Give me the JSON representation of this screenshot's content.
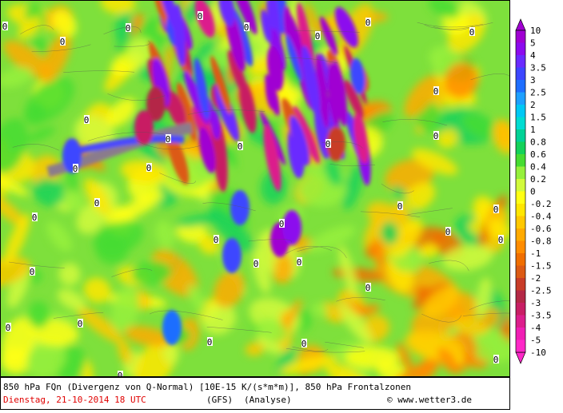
{
  "map": {
    "contour_label": "0"
  },
  "legend": {
    "labels": [
      10,
      5,
      4,
      3.5,
      3,
      2.5,
      2,
      1.5,
      1,
      0.8,
      0.6,
      0.4,
      0.2,
      0,
      -0.2,
      -0.4,
      -0.6,
      -0.8,
      -1,
      -1.5,
      -2,
      -2.5,
      -3,
      -3.5,
      -4,
      -5,
      -10
    ],
    "colors": [
      "#a000d2",
      "#8c0aee",
      "#6a2aff",
      "#3c46ff",
      "#1e6eff",
      "#1ea0ff",
      "#00c8f5",
      "#00dcd2",
      "#00d296",
      "#14d25a",
      "#46dc32",
      "#96f03c",
      "#d2fa3c",
      "#ffff14",
      "#ffe600",
      "#ffc800",
      "#ffaa00",
      "#ff8c00",
      "#f06e00",
      "#dc5a14",
      "#c83c28",
      "#b42846",
      "#c81e64",
      "#dc1e8c",
      "#f01eb4",
      "#ff28c8"
    ]
  },
  "caption": {
    "line1": "850 hPa FQn (Divergenz von Q-Normal) [10E-15 K/(s*m*m)], 850 hPa Frontalzonen",
    "date": "Dienstag, 21-10-2014  18 UTC",
    "model": "(GFS)",
    "run": "(Analyse)",
    "copyright": "© www.wetter3.de"
  }
}
